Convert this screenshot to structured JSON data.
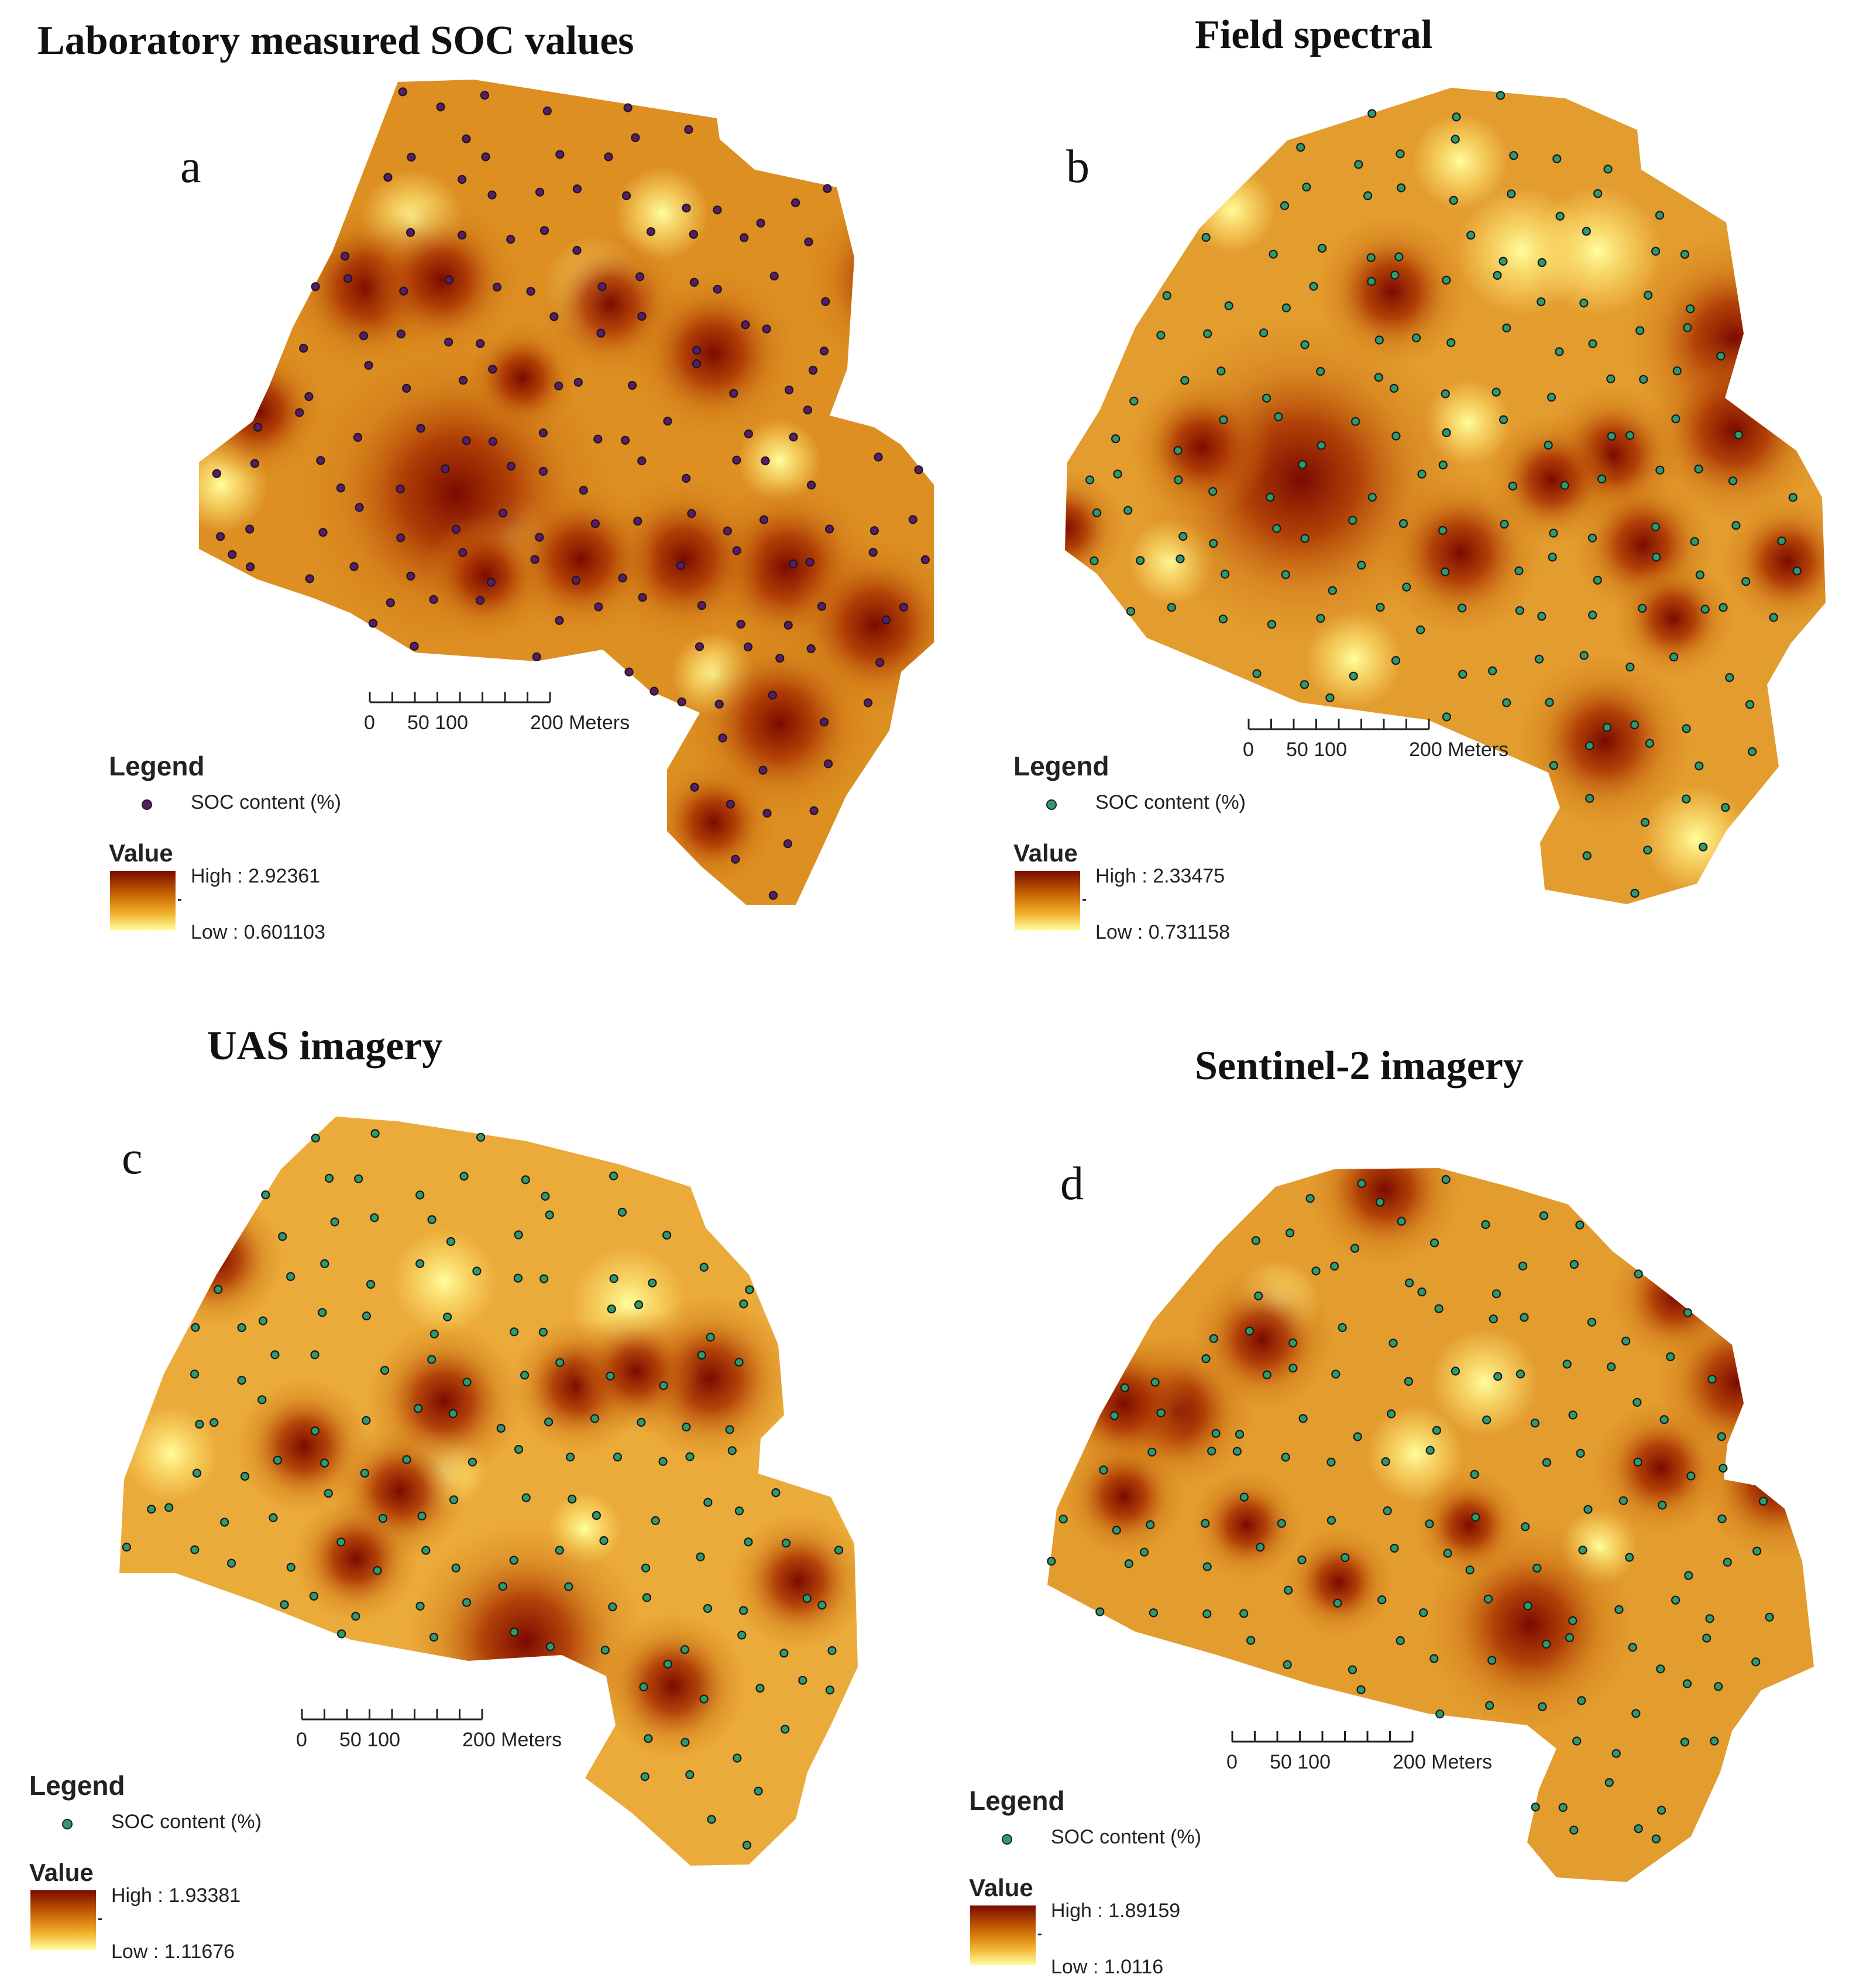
{
  "colors": {
    "high": "#7a0a00",
    "mid": "#d07d10",
    "low": "#ffff9e",
    "point_lab": "#5c1a6b",
    "point_green": "#2e9b6e",
    "text": "#111111"
  },
  "legend_common": {
    "legend_label": "Legend",
    "point_label": "SOC content (%)",
    "value_label": "Value"
  },
  "scale_bar": {
    "label_0": "0",
    "label_50_100": "50 100",
    "label_200": "200 Meters"
  },
  "panels": [
    {
      "id": "a",
      "letter": "a",
      "title": "Laboratory measured SOC values",
      "high_label": "High : 2.92361",
      "low_label": "Low : 0.601103",
      "point_color": "point_lab",
      "hotspots": [
        [
          0.35,
          0.5,
          3.0
        ],
        [
          0.23,
          0.25,
          1.6
        ],
        [
          0.33,
          0.24,
          1.5
        ],
        [
          0.56,
          0.27,
          1.4
        ],
        [
          0.7,
          0.33,
          1.6
        ],
        [
          0.95,
          0.24,
          1.8
        ],
        [
          0.8,
          0.59,
          1.7
        ],
        [
          0.66,
          0.58,
          1.6
        ],
        [
          0.52,
          0.58,
          1.5
        ],
        [
          0.92,
          0.66,
          1.7
        ],
        [
          0.79,
          0.78,
          1.8
        ],
        [
          0.7,
          0.9,
          1.2
        ],
        [
          0.2,
          0.74,
          1.3
        ],
        [
          0.39,
          0.6,
          1.2
        ],
        [
          0.08,
          0.4,
          1.3
        ],
        [
          0.44,
          0.36,
          1.1
        ]
      ],
      "coolspots": [
        [
          0.29,
          0.17,
          1.0
        ],
        [
          0.54,
          0.25,
          1.0
        ],
        [
          0.63,
          0.16,
          0.9
        ],
        [
          0.42,
          0.55,
          0.8
        ],
        [
          0.03,
          0.49,
          0.9
        ],
        [
          0.56,
          0.76,
          0.8
        ],
        [
          0.7,
          0.72,
          0.8
        ],
        [
          0.79,
          0.46,
          0.8
        ]
      ]
    },
    {
      "id": "b",
      "letter": "b",
      "title": "Field spectral",
      "high_label": "High : 2.33475",
      "low_label": "Low : 0.731158",
      "point_color": "point_green",
      "hotspots": [
        [
          0.31,
          0.48,
          3.0
        ],
        [
          0.43,
          0.25,
          1.4
        ],
        [
          0.88,
          0.31,
          2.0
        ],
        [
          0.88,
          0.42,
          1.7
        ],
        [
          0.72,
          0.45,
          1.3
        ],
        [
          0.71,
          0.8,
          1.6
        ],
        [
          0.52,
          0.57,
          1.5
        ],
        [
          0.18,
          0.44,
          1.3
        ],
        [
          0.76,
          0.56,
          1.3
        ],
        [
          0.64,
          0.48,
          1.2
        ],
        [
          0.95,
          0.58,
          1.2
        ],
        [
          0.0,
          0.54,
          1.1
        ],
        [
          0.8,
          0.65,
          1.1
        ]
      ],
      "coolspots": [
        [
          0.6,
          0.2,
          1.2
        ],
        [
          0.7,
          0.2,
          1.2
        ],
        [
          0.83,
          0.92,
          1.0
        ],
        [
          0.38,
          0.7,
          0.9
        ],
        [
          0.52,
          0.09,
          0.9
        ],
        [
          0.22,
          0.15,
          0.8
        ],
        [
          0.14,
          0.58,
          0.8
        ],
        [
          0.53,
          0.41,
          0.8
        ]
      ]
    },
    {
      "id": "c",
      "letter": "c",
      "title": "UAS imagery",
      "high_label": "High : 1.93381",
      "low_label": "Low : 1.11676",
      "point_color": "point_green",
      "hotspots": [
        [
          0.55,
          0.7,
          2.3
        ],
        [
          0.44,
          0.38,
          1.5
        ],
        [
          0.8,
          0.35,
          1.6
        ],
        [
          0.62,
          0.36,
          1.3
        ],
        [
          0.25,
          0.44,
          1.3
        ],
        [
          0.38,
          0.5,
          1.3
        ],
        [
          0.32,
          0.59,
          1.2
        ],
        [
          0.75,
          0.76,
          1.4
        ],
        [
          0.92,
          0.62,
          1.3
        ],
        [
          0.7,
          0.34,
          1.2
        ],
        [
          0.13,
          0.19,
          1.3
        ]
      ],
      "coolspots": [
        [
          0.69,
          0.25,
          1.1
        ],
        [
          0.44,
          0.22,
          1.0
        ],
        [
          0.07,
          0.45,
          0.9
        ],
        [
          0.44,
          0.47,
          0.8
        ],
        [
          0.63,
          0.55,
          0.7
        ]
      ]
    },
    {
      "id": "d",
      "letter": "d",
      "title": "Sentinel-2 imagery",
      "high_label": "High : 1.89159",
      "low_label": "Low : 1.0116",
      "point_color": "point_green",
      "hotspots": [
        [
          0.63,
          0.64,
          1.9
        ],
        [
          0.44,
          0.03,
          1.4
        ],
        [
          0.17,
          0.34,
          1.4
        ],
        [
          0.1,
          0.33,
          1.3
        ],
        [
          0.28,
          0.24,
          1.3
        ],
        [
          0.9,
          0.3,
          1.5
        ],
        [
          0.95,
          0.44,
          1.4
        ],
        [
          0.8,
          0.42,
          1.2
        ],
        [
          0.82,
          0.18,
          1.2
        ],
        [
          0.1,
          0.46,
          1.1
        ],
        [
          0.26,
          0.5,
          1.0
        ],
        [
          0.38,
          0.58,
          1.0
        ],
        [
          0.55,
          0.5,
          1.0
        ]
      ],
      "coolspots": [
        [
          0.57,
          0.3,
          1.0
        ],
        [
          0.48,
          0.4,
          0.9
        ],
        [
          0.3,
          0.19,
          0.8
        ],
        [
          0.72,
          0.53,
          0.7
        ]
      ]
    }
  ]
}
